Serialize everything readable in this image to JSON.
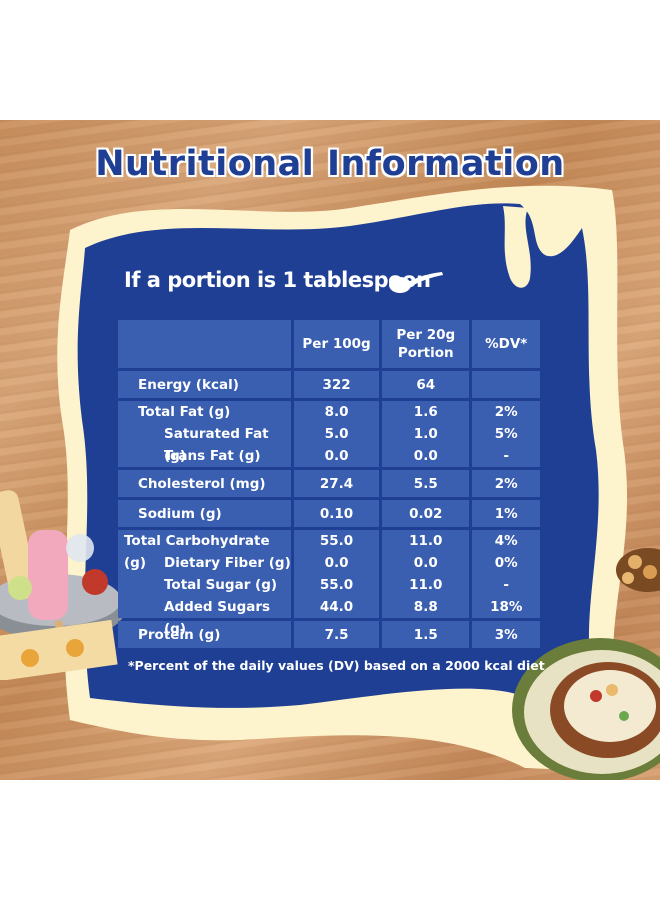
{
  "title": "Nutritional Information",
  "subtitle": "If a portion is 1 tablespoon",
  "table": {
    "headers": [
      "",
      "Per 100g",
      "Per 20g",
      "Portion",
      "%DV*"
    ],
    "rows": [
      {
        "label": "Energy (kcal)",
        "per100": "322",
        "per20": "64",
        "dv": ""
      },
      {
        "label": "Total Fat (g)",
        "per100": "8.0",
        "per20": "1.6",
        "dv": "2%"
      },
      {
        "label": "Saturated Fat (g)",
        "per100": "5.0",
        "per20": "1.0",
        "dv": "5%"
      },
      {
        "label": "Trans Fat (g)",
        "per100": "0.0",
        "per20": "0.0",
        "dv": "-"
      },
      {
        "label": "Cholesterol (mg)",
        "per100": "27.4",
        "per20": "5.5",
        "dv": "2%"
      },
      {
        "label": "Sodium (g)",
        "per100": "0.10",
        "per20": "0.02",
        "dv": "1%"
      },
      {
        "label": "Total Carbohydrate (g)",
        "per100": "55.0",
        "per20": "11.0",
        "dv": "4%"
      },
      {
        "label": "Dietary Fiber (g)",
        "per100": "0.0",
        "per20": "0.0",
        "dv": "0%"
      },
      {
        "label": "Total Sugar (g)",
        "per100": "55.0",
        "per20": "11.0",
        "dv": "-"
      },
      {
        "label": "Added Sugars (g)",
        "per100": "44.0",
        "per20": "8.8",
        "dv": "18%"
      },
      {
        "label": "Protein (g)",
        "per100": "7.5",
        "per20": "1.5",
        "dv": "3%"
      }
    ]
  },
  "footnote": "*Percent of the daily values (DV) based on a 2000 kcal diet",
  "colors": {
    "panel": "#1f3f95",
    "cell": "#3a5fb0",
    "frame": "#fdf3cc",
    "wood": "#c98f5e"
  }
}
